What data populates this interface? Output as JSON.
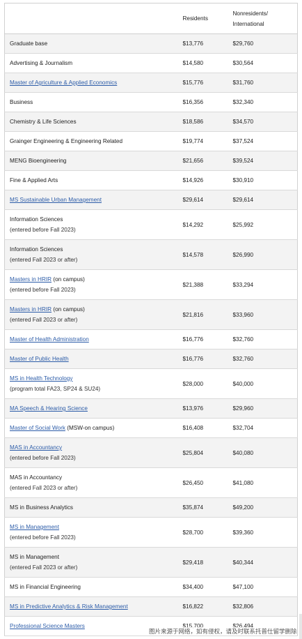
{
  "header": {
    "col_program": "",
    "col_residents": "Residents",
    "col_nonresidents_line1": "Nonresidents/",
    "col_nonresidents_line2": "International"
  },
  "rows": [
    {
      "name": "Graduate base",
      "link": "",
      "suffix": "",
      "note": "",
      "res": "$13,776",
      "nonres": "$29,760"
    },
    {
      "name": "Advertising & Journalism",
      "link": "",
      "suffix": "",
      "note": "",
      "res": "$14,580",
      "nonres": "$30,564"
    },
    {
      "name": "",
      "link": "Master of Agriculture & Applied Economics",
      "suffix": "",
      "note": "",
      "res": "$15,776",
      "nonres": "$31,760"
    },
    {
      "name": "Business",
      "link": "",
      "suffix": "",
      "note": "",
      "res": "$16,356",
      "nonres": "$32,340"
    },
    {
      "name": "Chemistry & Life Sciences",
      "link": "",
      "suffix": "",
      "note": "",
      "res": "$18,586",
      "nonres": "$34,570"
    },
    {
      "name": "Grainger Engineering & Engineering Related",
      "link": "",
      "suffix": "",
      "note": "",
      "res": "$19,774",
      "nonres": "$37,524"
    },
    {
      "name": "MENG Bioengineering",
      "link": "",
      "suffix": "",
      "note": "",
      "res": "$21,656",
      "nonres": "$39,524"
    },
    {
      "name": "Fine & Applied Arts",
      "link": "",
      "suffix": "",
      "note": "",
      "res": "$14,926",
      "nonres": "$30,910"
    },
    {
      "name": "",
      "link": "MS Sustainable Urban Management",
      "suffix": "",
      "note": "",
      "res": "$29,614",
      "nonres": "$29,614"
    },
    {
      "name": "Information Sciences",
      "link": "",
      "suffix": "",
      "note": "(entered before Fall 2023)",
      "res": "$14,292",
      "nonres": "$25,992"
    },
    {
      "name": "Information Sciences",
      "link": "",
      "suffix": "",
      "note": "(entered Fall 2023 or after)",
      "res": "$14,578",
      "nonres": "$26,990"
    },
    {
      "name": "",
      "link": "Masters in HRIR",
      "suffix": " (on campus)",
      "note": "(entered before Fall 2023)",
      "res": "$21,388",
      "nonres": "$33,294"
    },
    {
      "name": "",
      "link": "Masters in HRIR",
      "suffix": " (on campus)",
      "note": "(entered Fall 2023 or after)",
      "res": "$21,816",
      "nonres": "$33,960"
    },
    {
      "name": "",
      "link": "Master of Health Administration",
      "suffix": "",
      "note": "",
      "res": "$16,776",
      "nonres": "$32,760"
    },
    {
      "name": "",
      "link": "Master of Public Health",
      "suffix": "",
      "note": "",
      "res": "$16,776",
      "nonres": "$32,760"
    },
    {
      "name": "",
      "link": "MS in Health Technology",
      "suffix": "",
      "note": "(program total FA23, SP24 & SU24)",
      "res": "$28,000",
      "nonres": "$40,000"
    },
    {
      "name": "",
      "link": "MA Speech & Hearing Science",
      "suffix": "",
      "note": "",
      "res": "$13,976",
      "nonres": "$29,960"
    },
    {
      "name": "",
      "link": "Master of Social Work",
      "suffix": " (MSW-on campus)",
      "note": "",
      "res": "$16,408",
      "nonres": "$32,704"
    },
    {
      "name": "",
      "link": "MAS in Accountancy",
      "suffix": "",
      "note": "(entered before Fall 2023)",
      "res": "$25,804",
      "nonres": "$40,080"
    },
    {
      "name": "MAS in Accountancy",
      "link": "",
      "suffix": "",
      "note": "(entered Fall 2023 or after)",
      "res": "$26,450",
      "nonres": "$41,080"
    },
    {
      "name": "MS in Business Analytics",
      "link": "",
      "suffix": "",
      "note": "",
      "res": "$35,874",
      "nonres": "$49,200"
    },
    {
      "name": "",
      "link": "MS in Management",
      "suffix": "",
      "note": "(entered before Fall 2023)",
      "res": "$28,700",
      "nonres": "$39,360"
    },
    {
      "name": "MS in Management",
      "link": "",
      "suffix": "",
      "note": "(entered Fall 2023 or after)",
      "res": "$29,418",
      "nonres": "$40,344"
    },
    {
      "name": "MS in Financial Engineering",
      "link": "",
      "suffix": "",
      "note": "",
      "res": "$34,400",
      "nonres": "$47,100"
    },
    {
      "name": "",
      "link": "MS in Predictive Analytics & Risk Management",
      "suffix": "",
      "note": "",
      "res": "$16,822",
      "nonres": "$32,806"
    },
    {
      "name": "",
      "link": "Professional Science Masters",
      "suffix": "",
      "note": "",
      "res": "$15,700",
      "nonres": "$26,494"
    }
  ],
  "watermark": "图片来源于网络，如有侵权，请及时联系托普仕留学删除"
}
